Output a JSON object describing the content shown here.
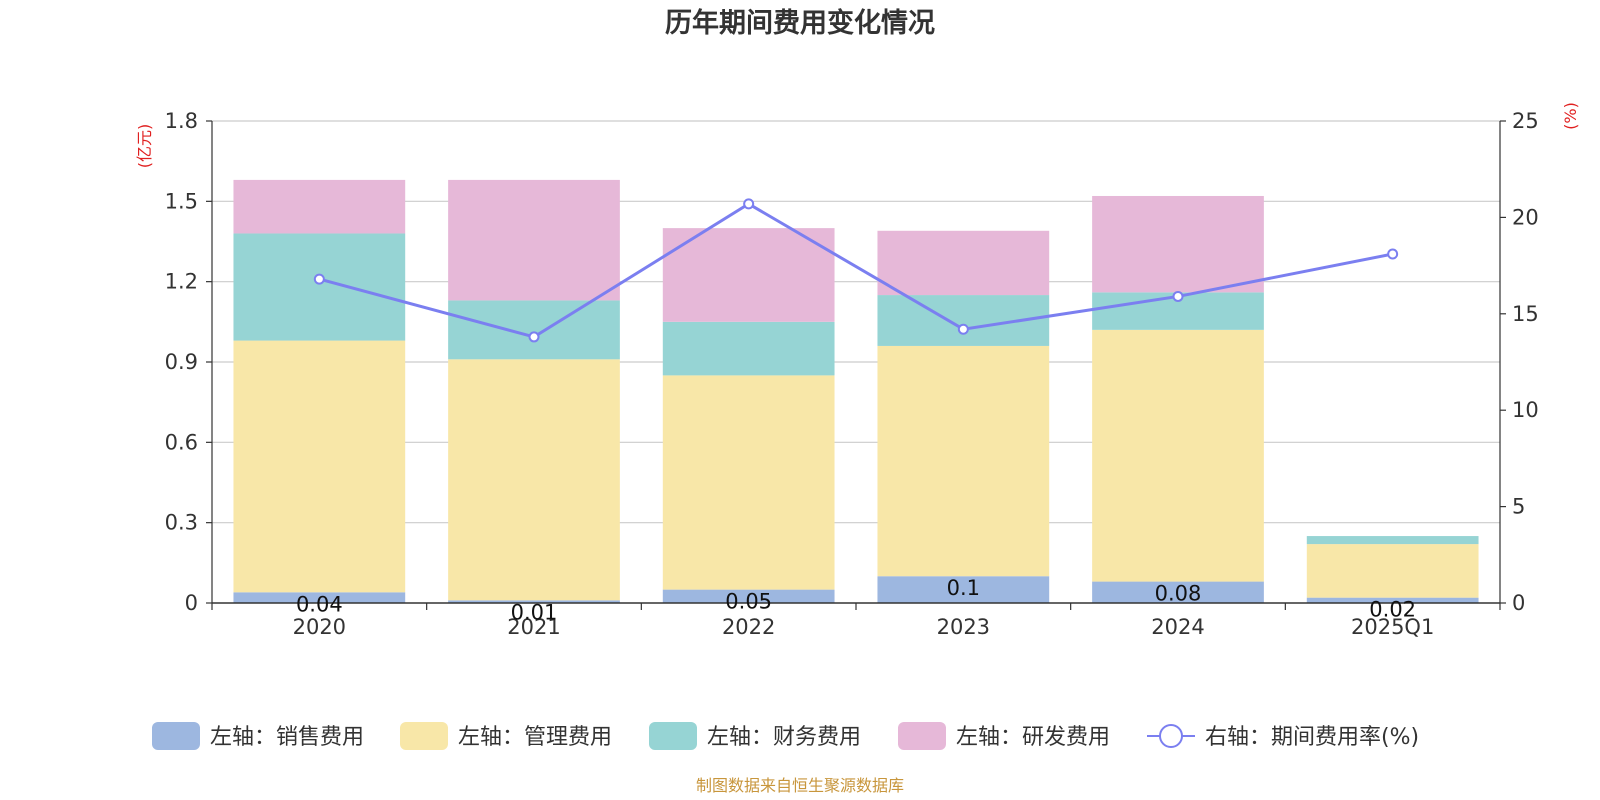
{
  "chart_data": {
    "type": "bar",
    "stacked": true,
    "title": "历年期间费用变化情况",
    "categories": [
      "2020",
      "2021",
      "2022",
      "2023",
      "2024",
      "2025Q1"
    ],
    "left_axis": {
      "unit": "(亿元)",
      "min": 0,
      "max": 1.8,
      "ticks": [
        "0",
        "0.3",
        "0.6",
        "0.9",
        "1.2",
        "1.5",
        "1.8"
      ]
    },
    "right_axis": {
      "unit": "(%)",
      "min": 0,
      "max": 25,
      "ticks": [
        "0",
        "5",
        "10",
        "15",
        "20",
        "25"
      ]
    },
    "series": [
      {
        "name": "左轴：销售费用",
        "axis": "left",
        "type": "bar",
        "color": "#9db7e0",
        "values": [
          0.04,
          0.01,
          0.05,
          0.1,
          0.08,
          0.02
        ],
        "labels": [
          "0.04",
          "0.01",
          "0.05",
          "0.1",
          "0.08",
          "0.02"
        ]
      },
      {
        "name": "左轴：管理费用",
        "axis": "left",
        "type": "bar",
        "color": "#f8e7a8",
        "values": [
          0.94,
          0.9,
          0.8,
          0.86,
          0.94,
          0.2
        ]
      },
      {
        "name": "左轴：财务费用",
        "axis": "left",
        "type": "bar",
        "color": "#96d4d4",
        "values": [
          0.4,
          0.22,
          0.2,
          0.19,
          0.14,
          0.03
        ]
      },
      {
        "name": "左轴：研发费用",
        "axis": "left",
        "type": "bar",
        "color": "#e6b8d8",
        "values": [
          0.2,
          0.45,
          0.35,
          0.24,
          0.36,
          0
        ]
      },
      {
        "name": "右轴：期间费用率(%)",
        "axis": "right",
        "type": "line",
        "color": "#7b7ff0",
        "values": [
          16.8,
          13.8,
          20.7,
          14.2,
          15.9,
          18.1
        ]
      }
    ],
    "legend_position": "bottom",
    "grid": true
  },
  "source_text": "制图数据来自恒生聚源数据库",
  "colors": {
    "axis_unit": "#e02020",
    "source": "#c8963c",
    "grid": "#cccccc",
    "axis": "#333333"
  }
}
